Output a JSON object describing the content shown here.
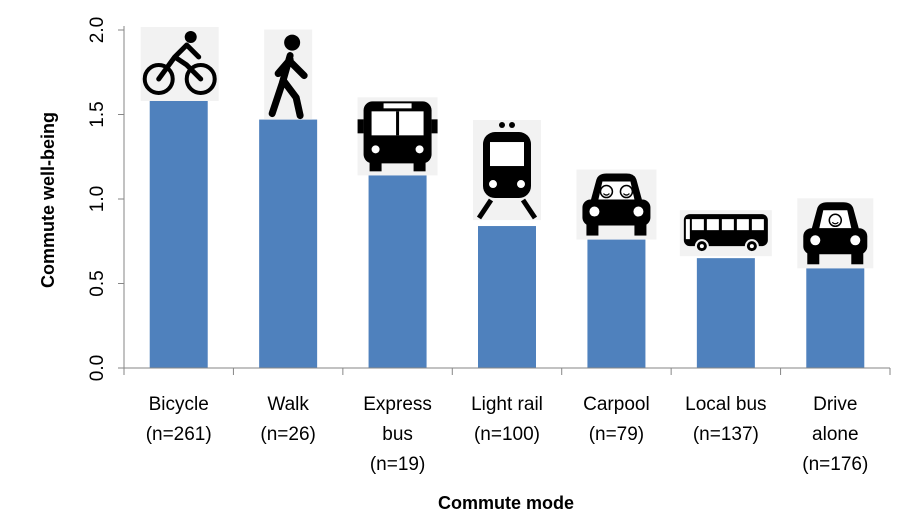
{
  "chart_data": {
    "type": "bar",
    "xlabel": "Commute mode",
    "ylabel": "Commute well-being",
    "ylim": [
      0,
      2.0
    ],
    "yticks": [
      "0.0",
      "0.5",
      "1.0",
      "1.5",
      "2.0"
    ],
    "grid": false,
    "legend": "none",
    "bar_color": "#4f81bd",
    "categories": [
      {
        "name": "bicycle",
        "lines": [
          "Bicycle",
          "(n=261)"
        ],
        "icon": "bicycle-icon",
        "value": 1.58
      },
      {
        "name": "walk",
        "lines": [
          "Walk",
          "(n=26)"
        ],
        "icon": "pedestrian-icon",
        "value": 1.47
      },
      {
        "name": "express-bus",
        "lines": [
          "Express",
          "bus",
          "(n=19)"
        ],
        "icon": "bus-front-icon",
        "value": 1.14
      },
      {
        "name": "light-rail",
        "lines": [
          "Light rail",
          "(n=100)"
        ],
        "icon": "train-icon",
        "value": 0.84
      },
      {
        "name": "carpool",
        "lines": [
          "Carpool",
          "(n=79)"
        ],
        "icon": "carpool-car-icon",
        "value": 0.76
      },
      {
        "name": "local-bus",
        "lines": [
          "Local bus",
          "(n=137)"
        ],
        "icon": "bus-side-icon",
        "value": 0.65
      },
      {
        "name": "drive-alone",
        "lines": [
          "Drive",
          "alone",
          "(n=176)"
        ],
        "icon": "car-icon",
        "value": 0.59
      }
    ]
  }
}
